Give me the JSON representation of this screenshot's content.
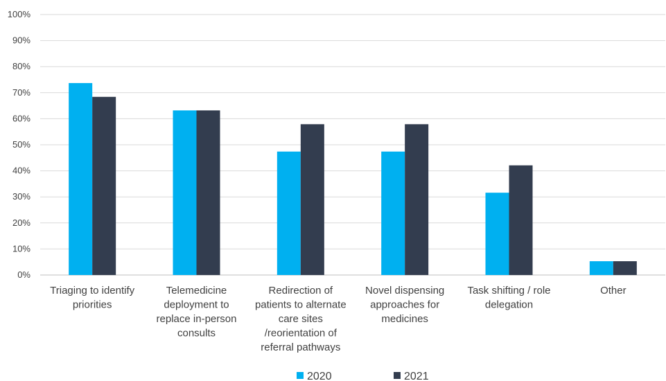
{
  "chart_data": {
    "type": "bar",
    "title": "",
    "xlabel": "",
    "ylabel": "",
    "ylim": [
      0,
      100
    ],
    "y_ticks": [
      "0%",
      "10%",
      "20%",
      "30%",
      "40%",
      "50%",
      "60%",
      "70%",
      "80%",
      "90%",
      "100%"
    ],
    "grid": true,
    "legend_position": "bottom",
    "categories": [
      [
        "Triaging to identify",
        "priorities"
      ],
      [
        "Telemedicine",
        "deployment to",
        "replace in-person",
        "consults"
      ],
      [
        "Redirection of",
        "patients to alternate",
        "care sites",
        "/reorientation of",
        "referral pathways"
      ],
      [
        "Novel dispensing",
        "approaches for",
        "medicines"
      ],
      [
        "Task shifting / role",
        "delegation"
      ],
      [
        "Other"
      ]
    ],
    "series": [
      {
        "name": "2020",
        "color": "#00b0f0",
        "values": [
          73.7,
          63.2,
          47.4,
          47.4,
          31.6,
          5.3
        ]
      },
      {
        "name": "2021",
        "color": "#333d4f",
        "values": [
          68.4,
          63.2,
          57.9,
          57.9,
          42.1,
          5.3
        ]
      }
    ]
  }
}
